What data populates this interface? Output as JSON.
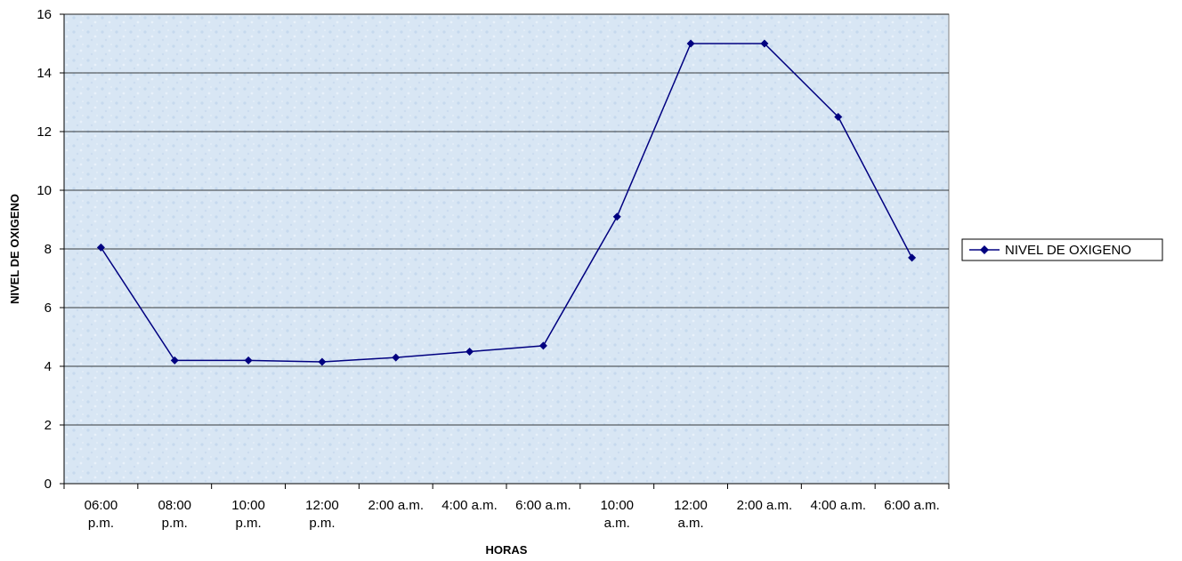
{
  "chart_data": {
    "type": "line",
    "categories": [
      [
        "06:00",
        "p.m."
      ],
      [
        "08:00",
        "p.m."
      ],
      [
        "10:00",
        "p.m."
      ],
      [
        "12:00",
        "p.m."
      ],
      [
        "2:00 a.m."
      ],
      [
        "4:00 a.m."
      ],
      [
        "6:00 a.m."
      ],
      [
        "10:00",
        "a.m."
      ],
      [
        "12:00",
        "a.m."
      ],
      [
        "2:00 a.m."
      ],
      [
        "4:00 a.m."
      ],
      [
        "6:00 a.m."
      ]
    ],
    "series": [
      {
        "name": "NIVEL DE OXIGENO",
        "values": [
          8.05,
          4.2,
          4.2,
          4.15,
          4.3,
          4.5,
          4.7,
          9.1,
          15.0,
          15.0,
          12.5,
          7.7
        ],
        "color": "#000080"
      }
    ],
    "xlabel": "HORAS",
    "ylabel": "NIVEL DE OXIGENO",
    "ylim": [
      0,
      16
    ],
    "yticks": [
      "0",
      "2",
      "4",
      "6",
      "8",
      "10",
      "12",
      "14",
      "16"
    ],
    "grid": true,
    "legend_position": "right",
    "plot_background": "#dbe8f5",
    "gridline_color": "#000000"
  }
}
